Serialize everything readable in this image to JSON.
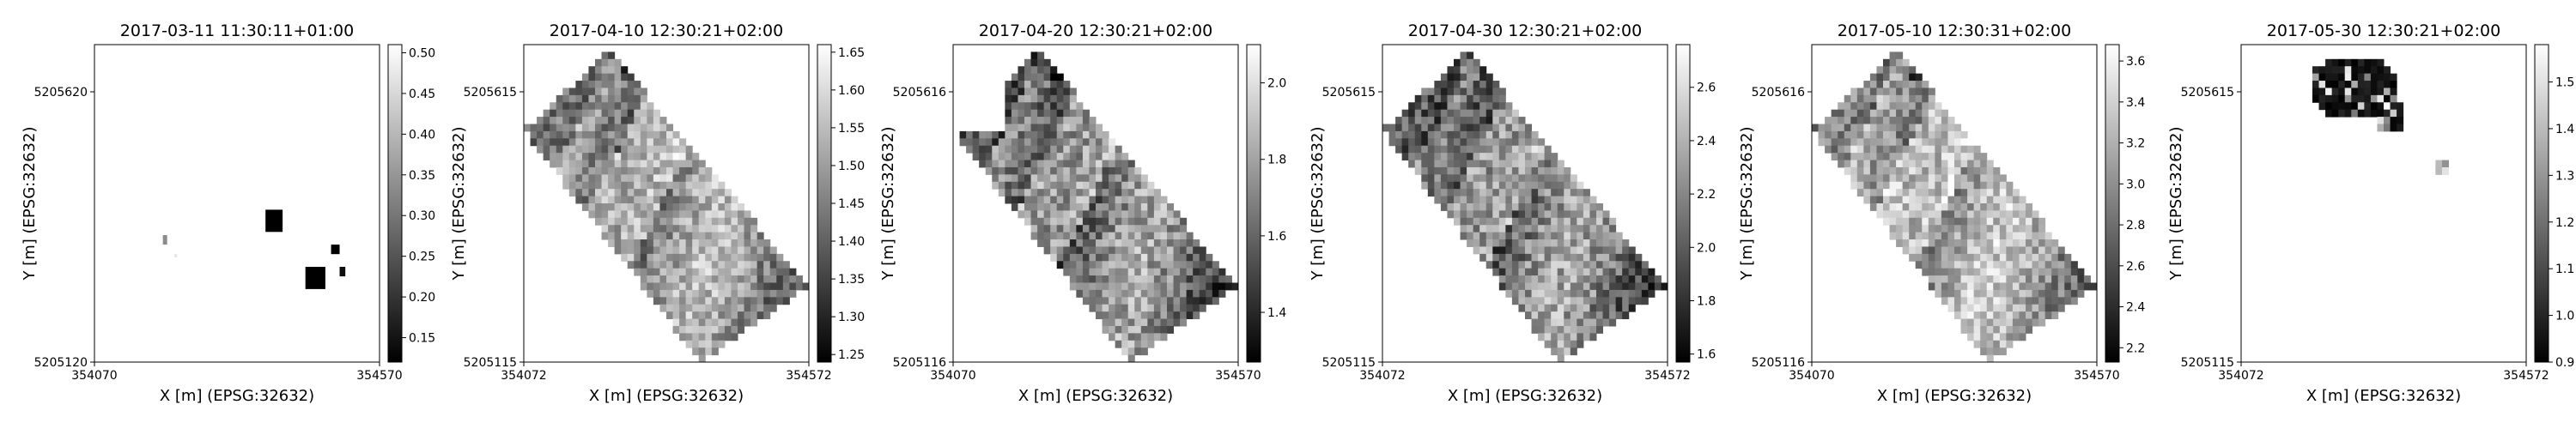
{
  "panels": [
    {
      "title": "2017-03-11 11:30:11+01:00",
      "xlabel": "X [m] (EPSG:32632)",
      "ylabel": "Y [m] (EPSG:32632)",
      "x_ticks": [
        "354070",
        "354570"
      ],
      "y_ticks": [
        "5205620",
        "5205120"
      ],
      "colorbar_ticks": [
        "0.15",
        "0.20",
        "0.25",
        "0.30",
        "0.35",
        "0.40",
        "0.45",
        "0.50"
      ],
      "colorbar_range": [
        0.12,
        0.51
      ]
    },
    {
      "title": "2017-04-10 12:30:21+02:00",
      "xlabel": "X [m] (EPSG:32632)",
      "ylabel": "Y [m] (EPSG:32632)",
      "x_ticks": [
        "354072",
        "354572"
      ],
      "y_ticks": [
        "5205615",
        "5205115"
      ],
      "colorbar_ticks": [
        "1.25",
        "1.30",
        "1.35",
        "1.40",
        "1.45",
        "1.50",
        "1.55",
        "1.60",
        "1.65"
      ],
      "colorbar_range": [
        1.24,
        1.66
      ]
    },
    {
      "title": "2017-04-20 12:30:21+02:00",
      "xlabel": "X [m] (EPSG:32632)",
      "ylabel": "Y [m] (EPSG:32632)",
      "x_ticks": [
        "354070",
        "354570"
      ],
      "y_ticks": [
        "5205616",
        "5205116"
      ],
      "colorbar_ticks": [
        "1.4",
        "1.6",
        "1.8",
        "2.0"
      ],
      "colorbar_range": [
        1.27,
        2.1
      ]
    },
    {
      "title": "2017-04-30 12:30:21+02:00",
      "xlabel": "X [m] (EPSG:32632)",
      "ylabel": "Y [m] (EPSG:32632)",
      "x_ticks": [
        "354072",
        "354572"
      ],
      "y_ticks": [
        "5205615",
        "5205115"
      ],
      "colorbar_ticks": [
        "1.6",
        "1.8",
        "2.0",
        "2.2",
        "2.4",
        "2.6"
      ],
      "colorbar_range": [
        1.57,
        2.76
      ]
    },
    {
      "title": "2017-05-10 12:30:31+02:00",
      "xlabel": "X [m] (EPSG:32632)",
      "ylabel": "Y [m] (EPSG:32632)",
      "x_ticks": [
        "354070",
        "354570"
      ],
      "y_ticks": [
        "5205616",
        "5205116"
      ],
      "colorbar_ticks": [
        "2.2",
        "2.4",
        "2.6",
        "2.8",
        "3.0",
        "3.2",
        "3.4",
        "3.6"
      ],
      "colorbar_range": [
        2.13,
        3.68
      ]
    },
    {
      "title": "2017-05-30 12:30:21+02:00",
      "xlabel": "X [m] (EPSG:32632)",
      "ylabel": "Y [m] (EPSG:32632)",
      "x_ticks": [
        "354072",
        "354572"
      ],
      "y_ticks": [
        "5205615",
        "5205115"
      ],
      "colorbar_ticks": [
        "0.9",
        "1.0",
        "1.1",
        "1.2",
        "1.3",
        "1.4",
        "1.5"
      ],
      "colorbar_range": [
        0.9,
        1.58
      ]
    }
  ],
  "chart_data": {
    "type": "heatmap",
    "colormap": "greys_r",
    "panel_count": 6,
    "layout": "single row of raster panels, each with a vertical colorbar on its right",
    "titles": [
      "2017-03-11 11:30:11+01:00",
      "2017-04-10 12:30:21+02:00",
      "2017-04-20 12:30:21+02:00",
      "2017-04-30 12:30:21+02:00",
      "2017-05-10 12:30:31+02:00",
      "2017-05-30 12:30:21+02:00"
    ],
    "xlabel": "X [m] (EPSG:32632)",
    "ylabel": "Y [m] (EPSG:32632)"
  }
}
